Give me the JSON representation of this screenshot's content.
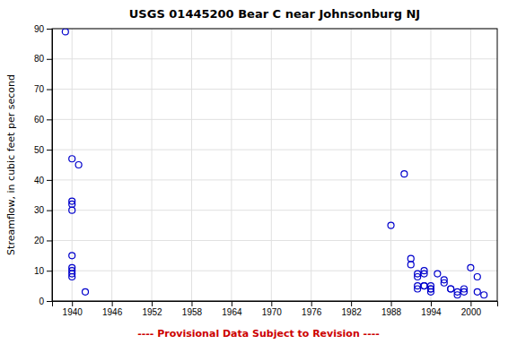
{
  "chart_data": {
    "type": "scatter",
    "title": "USGS 01445200 Bear C near Johnsonburg NJ",
    "ylabel": "Streamflow, in cubic feet per second",
    "x": [
      1939,
      1940,
      1941,
      1940,
      1940,
      1940,
      1940,
      1940,
      1940,
      1940,
      1940,
      1942,
      1988,
      1990,
      1991,
      1991,
      1992,
      1992,
      1992,
      1992,
      1993,
      1993,
      1993,
      1993,
      1994,
      1994,
      1994,
      1994,
      1995,
      1996,
      1996,
      1997,
      1997,
      1998,
      1998,
      1999,
      1999,
      2000,
      2001,
      2001,
      2002
    ],
    "values": [
      89,
      47,
      45,
      33,
      32,
      30,
      15,
      11,
      10,
      9,
      8,
      3,
      25,
      42,
      14,
      12,
      9,
      8,
      5,
      4,
      10,
      9,
      5,
      5,
      5,
      4,
      4,
      3,
      9,
      7,
      6,
      4,
      4,
      3,
      2,
      4,
      3,
      11,
      8,
      3,
      2
    ],
    "color": "#0000CC",
    "marker": "open-circle",
    "xlim": [
      1937,
      2004
    ],
    "ylim": [
      0,
      90
    ],
    "xticks": [
      1940,
      1946,
      1952,
      1958,
      1964,
      1970,
      1976,
      1982,
      1988,
      1994,
      2000
    ],
    "yticks": [
      0,
      10,
      20,
      30,
      40,
      50,
      60,
      70,
      80,
      90
    ],
    "grid": true,
    "annotations": [
      {
        "text": "---- Provisional Data Subject to Revision ----",
        "color": "#cc0000"
      }
    ]
  }
}
